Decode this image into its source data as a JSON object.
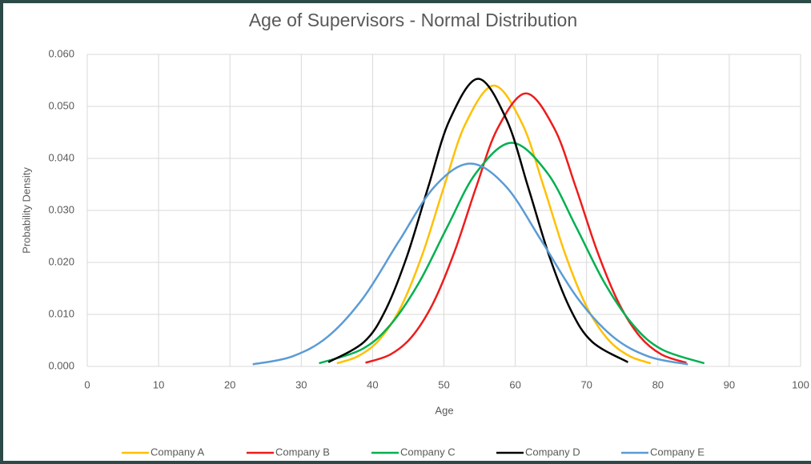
{
  "chart_data": {
    "type": "line",
    "title": "Age of Supervisors - Normal Distribution",
    "x_label": "Age",
    "y_label": "Probability Density",
    "xlim": [
      0,
      100
    ],
    "xticks": [
      0,
      10,
      20,
      30,
      40,
      50,
      60,
      70,
      80,
      90,
      100
    ],
    "ylim": [
      0,
      0.06
    ],
    "yticks": [
      {
        "value": 0,
        "label": "0.000"
      },
      {
        "value": 0.01,
        "label": "0.010"
      },
      {
        "value": 0.02,
        "label": "0.020"
      },
      {
        "value": 0.03,
        "label": "0.030"
      },
      {
        "value": 0.04,
        "label": "0.040"
      },
      {
        "value": 0.05,
        "label": "0.050"
      },
      {
        "value": 0.06,
        "label": "0.060"
      }
    ],
    "grid": true,
    "legend": "bottom",
    "series": [
      {
        "name": "Company A",
        "color": "#ffc000",
        "x": [
          35,
          38,
          41,
          44,
          47,
          50,
          53,
          57,
          61,
          64,
          67,
          70,
          73,
          76,
          79
        ],
        "values": [
          0.0006,
          0.002,
          0.0052,
          0.0115,
          0.0216,
          0.0345,
          0.0466,
          0.054,
          0.0466,
          0.0345,
          0.0216,
          0.0115,
          0.0052,
          0.002,
          0.0006
        ]
      },
      {
        "name": "Company B",
        "color": "#ee1c1c",
        "x": [
          39,
          42.5,
          45.5,
          48.5,
          51.5,
          54.5,
          57.5,
          61.5,
          65.5,
          68.5,
          71.5,
          74.5,
          77.5,
          80.5,
          84
        ],
        "values": [
          0.0007,
          0.0023,
          0.0057,
          0.0122,
          0.0221,
          0.0344,
          0.0457,
          0.0525,
          0.0457,
          0.0344,
          0.0221,
          0.0122,
          0.0057,
          0.0023,
          0.0007
        ]
      },
      {
        "name": "Company C",
        "color": "#00b050",
        "x": [
          32.5,
          38.5,
          42.5,
          46.5,
          50.5,
          54.5,
          59.5,
          64.5,
          68.5,
          72.5,
          76.5,
          80.5,
          86.5
        ],
        "values": [
          0.0006,
          0.0033,
          0.008,
          0.0161,
          0.0269,
          0.0372,
          0.043,
          0.0372,
          0.0269,
          0.0161,
          0.008,
          0.0033,
          0.0006
        ]
      },
      {
        "name": "Company D",
        "color": "#000000",
        "x": [
          33.8,
          38.8,
          41.8,
          44.8,
          47.8,
          50.8,
          54.8,
          58.8,
          61.8,
          64.8,
          67.8,
          70.8,
          75.8
        ],
        "values": [
          0.0008,
          0.0047,
          0.0108,
          0.0211,
          0.0345,
          0.0474,
          0.0553,
          0.0474,
          0.0345,
          0.0211,
          0.0108,
          0.0047,
          0.0008
        ]
      },
      {
        "name": "Company E",
        "color": "#5b9bd5",
        "x": [
          23.2,
          28.7,
          33.7,
          38.7,
          43.7,
          48.7,
          53.7,
          58.7,
          63.7,
          68.7,
          73.7,
          78.7,
          84.2
        ],
        "values": [
          0.0004,
          0.0019,
          0.0057,
          0.0132,
          0.0241,
          0.0346,
          0.039,
          0.0346,
          0.0241,
          0.0132,
          0.0057,
          0.0019,
          0.0004
        ]
      }
    ]
  }
}
